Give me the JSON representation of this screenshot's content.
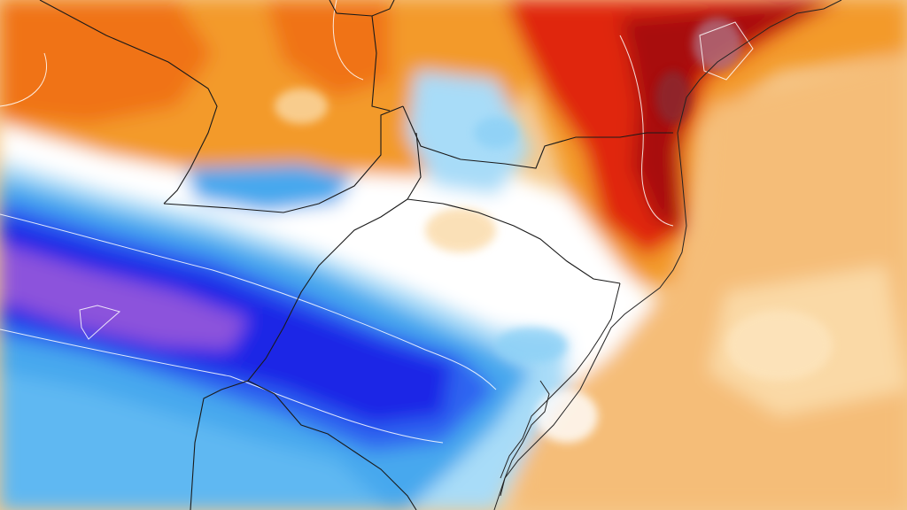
{
  "map": {
    "kind": "temperature-anomaly-field",
    "palette": {
      "deep_purple": "#8c52dc",
      "royal_blue": "#1e28e6",
      "mid_blue": "#2f64f0",
      "sky_blue": "#46a8ee",
      "light_blue": "#a8dcf8",
      "white": "#ffffff",
      "pale_orange": "#fad9a6",
      "light_orange": "#f5b96a",
      "orange": "#f39a2c",
      "dark_orange": "#f07318",
      "red": "#e0280c",
      "dark_red": "#a8100a",
      "maroon": "#8a2a30",
      "mauve": "#b07080"
    },
    "features": [
      "contour-lines",
      "state-borders",
      "country-borders",
      "coastline",
      "lagoon-outlines"
    ]
  }
}
